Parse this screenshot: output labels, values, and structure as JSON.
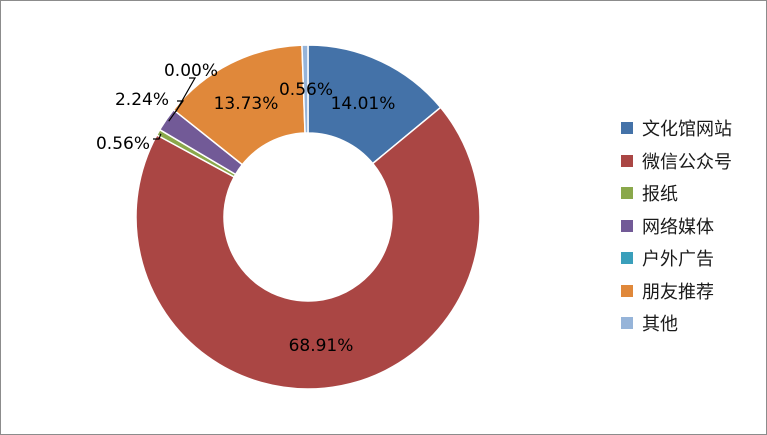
{
  "chart_data": {
    "type": "pie",
    "variant": "doughnut",
    "title": "",
    "categories": [
      "文化馆网站",
      "微信公众号",
      "报纸",
      "网络媒体",
      "户外广告",
      "朋友推荐",
      "其他"
    ],
    "values": [
      14.01,
      68.91,
      0.56,
      2.24,
      0.0,
      13.73,
      0.56
    ],
    "data_labels": [
      "14.01%",
      "68.91%",
      "0.56%",
      "2.24%",
      "0.00%",
      "13.73%",
      "0.56%"
    ],
    "colors": [
      "#4472a8",
      "#aa4644",
      "#8aa84b",
      "#725a97",
      "#3a9fbb",
      "#e0883a",
      "#96b4d9"
    ],
    "legend_position": "right"
  }
}
